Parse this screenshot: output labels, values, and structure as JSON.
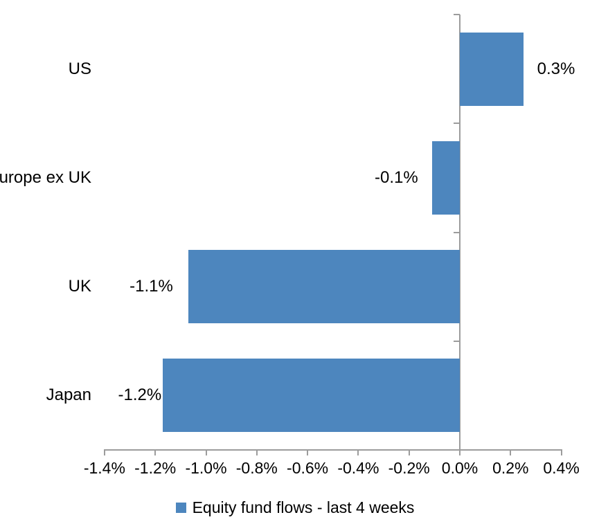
{
  "chart_data": {
    "type": "bar",
    "orientation": "horizontal",
    "title": "",
    "xlabel": "",
    "ylabel": "",
    "categories": [
      "US",
      "Europe ex UK",
      "UK",
      "Japan"
    ],
    "values": [
      0.3,
      -0.1,
      -1.1,
      -1.2
    ],
    "data_labels": [
      "0.3%",
      "-0.1%",
      "-1.1%",
      "-1.2%"
    ],
    "bar_values_render": [
      0.25,
      -0.11,
      -1.07,
      -1.17
    ],
    "x_ticks": [
      "-1.4%",
      "-1.2%",
      "-1.0%",
      "-0.8%",
      "-0.6%",
      "-0.4%",
      "-0.2%",
      "0.0%",
      "0.2%",
      "0.4%"
    ],
    "x_tick_values": [
      -1.4,
      -1.2,
      -1.0,
      -0.8,
      -0.6,
      -0.4,
      -0.2,
      0.0,
      0.2,
      0.4
    ],
    "xlim": [
      -1.4,
      0.4
    ],
    "grid": false,
    "legend_position": "bottom-center",
    "legend": [
      {
        "label": "Equity fund flows - last 4 weeks",
        "color": "#4D86BE"
      }
    ],
    "bar_color": "#4D86BE",
    "axis_color": "#9C9C9C",
    "text_color": "#000000"
  }
}
